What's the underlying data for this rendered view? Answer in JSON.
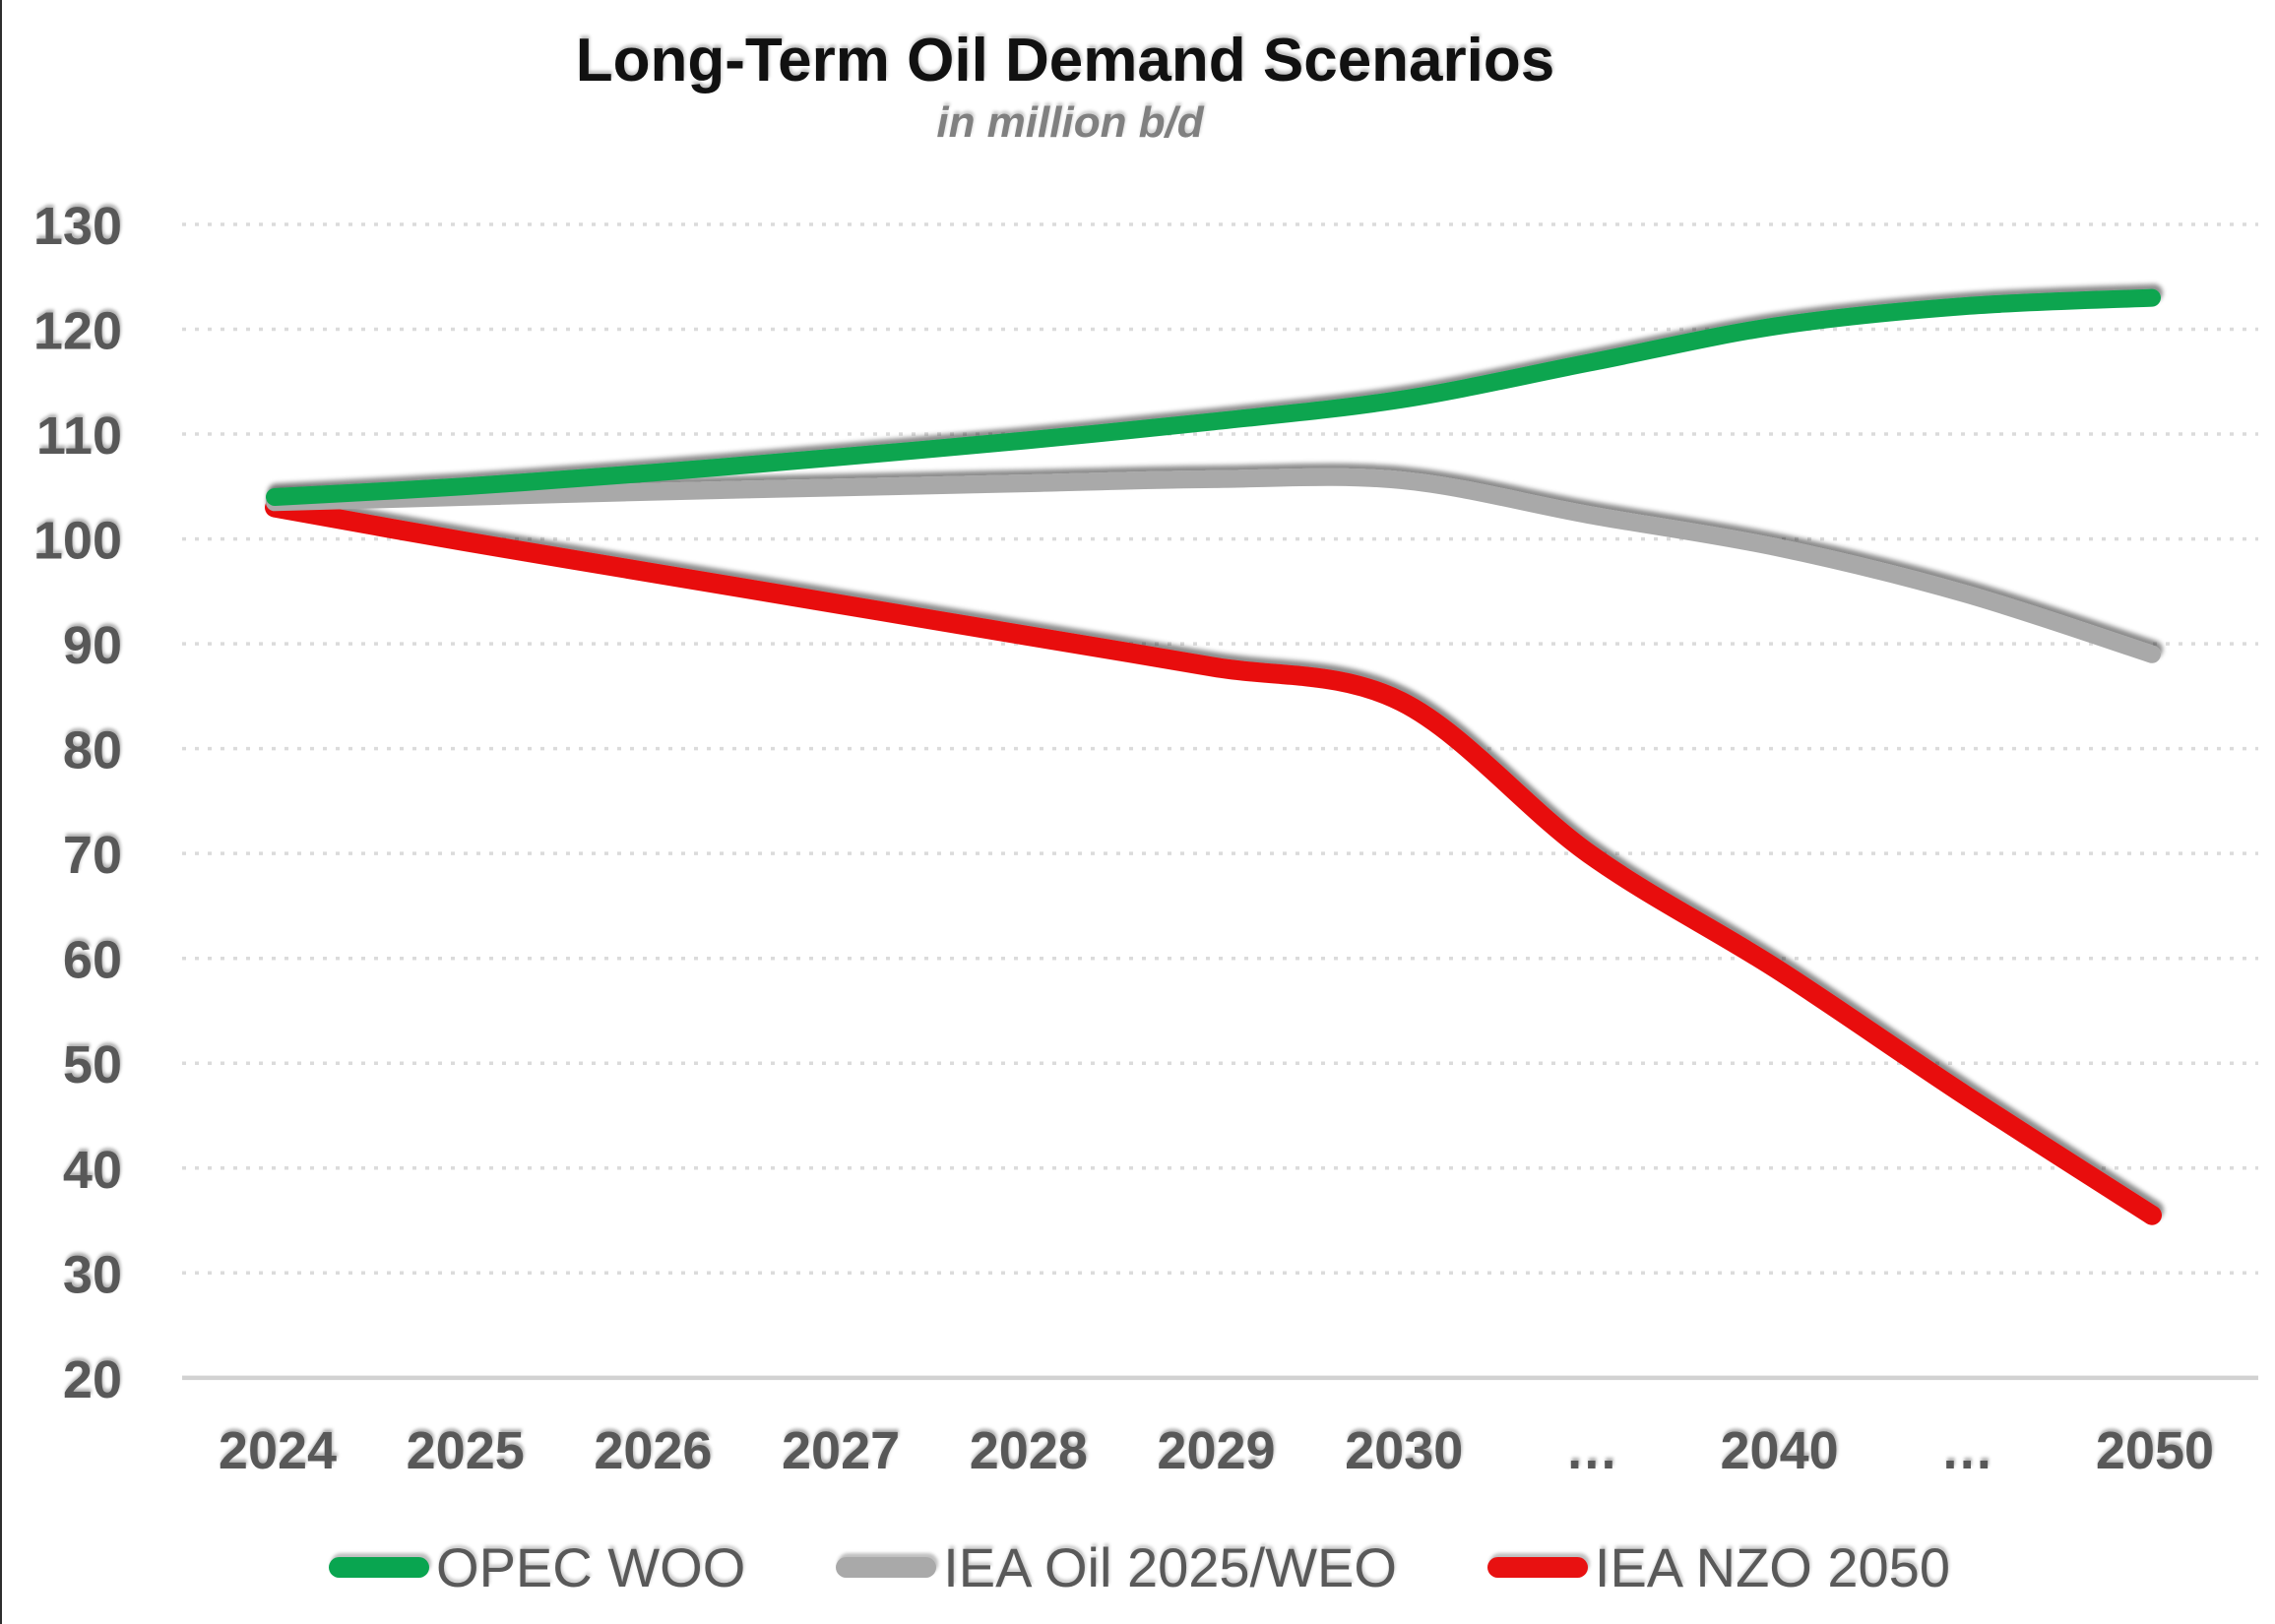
{
  "page": {
    "background": "#ffffff",
    "left_edge_line_color": "#2e2e2e"
  },
  "chart_data": {
    "type": "line",
    "title": "Long-Term Oil Demand Scenarios",
    "subtitle": "in million b/d",
    "categories": [
      "2024",
      "2025",
      "2026",
      "2027",
      "2028",
      "2029",
      "2030",
      "…",
      "2040",
      "…",
      "2050"
    ],
    "series": [
      {
        "name": "OPEC WOO",
        "color": "#09A550",
        "stroke_width": 18,
        "values": [
          104,
          105,
          106.3,
          107.8,
          109.4,
          111.2,
          113.3,
          116.8,
          120.3,
          122.2,
          123
        ]
      },
      {
        "name": "IEA Oil 2025/WEO",
        "color": "#A9A9A9",
        "stroke_width": 18,
        "values": [
          103.5,
          104,
          104.5,
          104.9,
          105.3,
          105.7,
          105.6,
          102.3,
          99.2,
          94.8,
          89
        ]
      },
      {
        "name": "IEA NZO 2050",
        "color": "#E81111",
        "stroke_width": 20,
        "values": [
          103,
          99.8,
          96.8,
          93.8,
          90.8,
          87.8,
          84.5,
          70,
          59,
          47,
          35.5
        ]
      }
    ],
    "ylim": [
      20,
      130
    ],
    "ytick_step": 10,
    "yticks": [
      20,
      30,
      40,
      50,
      60,
      70,
      80,
      90,
      100,
      110,
      120,
      130
    ],
    "grid": "horizontal-dotted",
    "gridline_color": "#DBDBDB",
    "axis_line_color": "#D2D2D2",
    "axis_label_color": "#595959",
    "title_color": "#111111",
    "subtitle_color": "#808080",
    "legend_position": "bottom",
    "legend_text_color": "#595959"
  }
}
